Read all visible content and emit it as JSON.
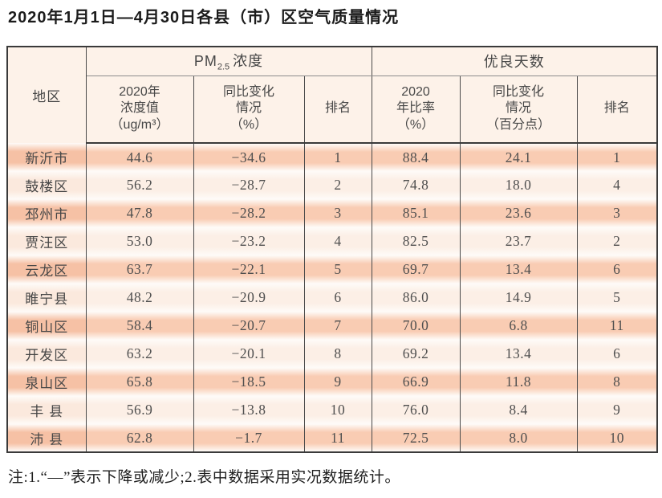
{
  "title": "2020年1月1日—4月30日各县（市）区空气质量情况",
  "table": {
    "header": {
      "region": "地区",
      "pm_group": {
        "prefix": "PM",
        "sub": "2.5",
        "suffix": "浓度"
      },
      "good_group": "优良天数",
      "subs": [
        "2020年\n浓度值\n（ug/m³）",
        "同比变化\n情况\n（%）",
        "排名",
        "2020\n年比率\n（%）",
        "同比变化\n情况\n（百分点）",
        "排名"
      ]
    },
    "rows": [
      {
        "region": "新沂市",
        "pm_value": "44.6",
        "pm_change": "−34.6",
        "pm_rank": "1",
        "good_rate": "88.4",
        "good_change": "24.1",
        "good_rank": "1"
      },
      {
        "region": "鼓楼区",
        "pm_value": "56.2",
        "pm_change": "−28.7",
        "pm_rank": "2",
        "good_rate": "74.8",
        "good_change": "18.0",
        "good_rank": "4"
      },
      {
        "region": "邳州市",
        "pm_value": "47.8",
        "pm_change": "−28.2",
        "pm_rank": "3",
        "good_rate": "85.1",
        "good_change": "23.6",
        "good_rank": "3"
      },
      {
        "region": "贾汪区",
        "pm_value": "53.0",
        "pm_change": "−23.2",
        "pm_rank": "4",
        "good_rate": "82.5",
        "good_change": "23.7",
        "good_rank": "2"
      },
      {
        "region": "云龙区",
        "pm_value": "63.7",
        "pm_change": "−22.1",
        "pm_rank": "5",
        "good_rate": "69.7",
        "good_change": "13.4",
        "good_rank": "6"
      },
      {
        "region": "睢宁县",
        "pm_value": "48.2",
        "pm_change": "−20.9",
        "pm_rank": "6",
        "good_rate": "86.0",
        "good_change": "14.9",
        "good_rank": "5"
      },
      {
        "region": "铜山区",
        "pm_value": "58.4",
        "pm_change": "−20.7",
        "pm_rank": "7",
        "good_rate": "70.0",
        "good_change": "6.8",
        "good_rank": "11"
      },
      {
        "region": "开发区",
        "pm_value": "63.2",
        "pm_change": "−20.1",
        "pm_rank": "8",
        "good_rate": "69.2",
        "good_change": "13.4",
        "good_rank": "6"
      },
      {
        "region": "泉山区",
        "pm_value": "65.8",
        "pm_change": "−18.5",
        "pm_rank": "9",
        "good_rate": "66.9",
        "good_change": "11.8",
        "good_rank": "8"
      },
      {
        "region": "丰 县",
        "pm_value": "56.9",
        "pm_change": "−13.8",
        "pm_rank": "10",
        "good_rate": "76.0",
        "good_change": "8.4",
        "good_rank": "9"
      },
      {
        "region": "沛 县",
        "pm_value": "62.8",
        "pm_change": "−1.7",
        "pm_rank": "11",
        "good_rate": "72.5",
        "good_change": "8.0",
        "good_rank": "10"
      }
    ]
  },
  "note": "注:1.“—”表示下降或减少;2.表中数据采用实况数据统计。"
}
